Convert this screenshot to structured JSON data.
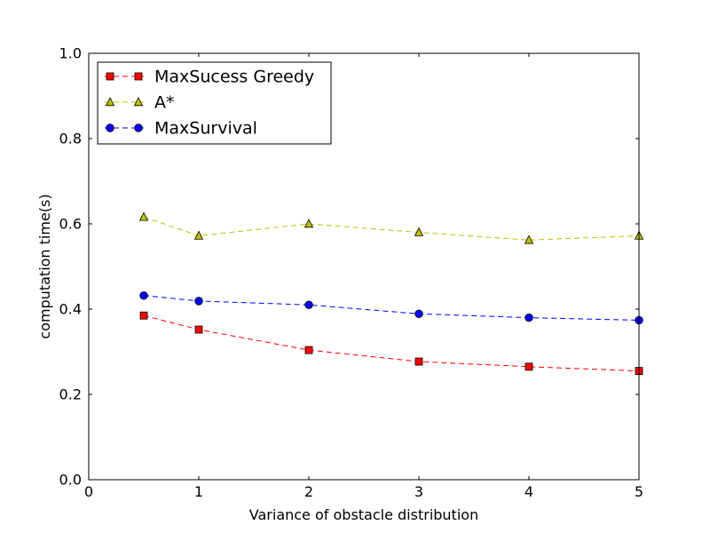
{
  "chart_data": {
    "type": "line",
    "title": "",
    "xlabel": "Variance of obstacle distribution",
    "ylabel": "computation time(s)",
    "xlim": [
      0,
      5
    ],
    "ylim": [
      0,
      1
    ],
    "xticks": [
      0,
      1,
      2,
      3,
      4,
      5
    ],
    "xtick_labels": [
      "0",
      "1",
      "2",
      "3",
      "4",
      "5"
    ],
    "yticks": [
      0,
      0.2,
      0.4,
      0.6,
      0.8,
      1.0
    ],
    "ytick_labels": [
      "0.0",
      "0.2",
      "0.4",
      "0.6",
      "0.8",
      "1.0"
    ],
    "grid": false,
    "legend_position": "top-left",
    "x": [
      0.5,
      1,
      2,
      3,
      4,
      5
    ],
    "series": [
      {
        "name": "MaxSucess Greedy",
        "values": [
          0.385,
          0.352,
          0.304,
          0.277,
          0.265,
          0.255
        ],
        "color": "#ff0000",
        "marker": "square"
      },
      {
        "name": "A*",
        "values": [
          0.616,
          0.572,
          0.6,
          0.58,
          0.562,
          0.572
        ],
        "color": "#bfbf00",
        "marker": "triangle"
      },
      {
        "name": "MaxSurvival",
        "values": [
          0.432,
          0.419,
          0.41,
          0.389,
          0.38,
          0.374
        ],
        "color": "#0000ff",
        "marker": "circle"
      }
    ]
  }
}
